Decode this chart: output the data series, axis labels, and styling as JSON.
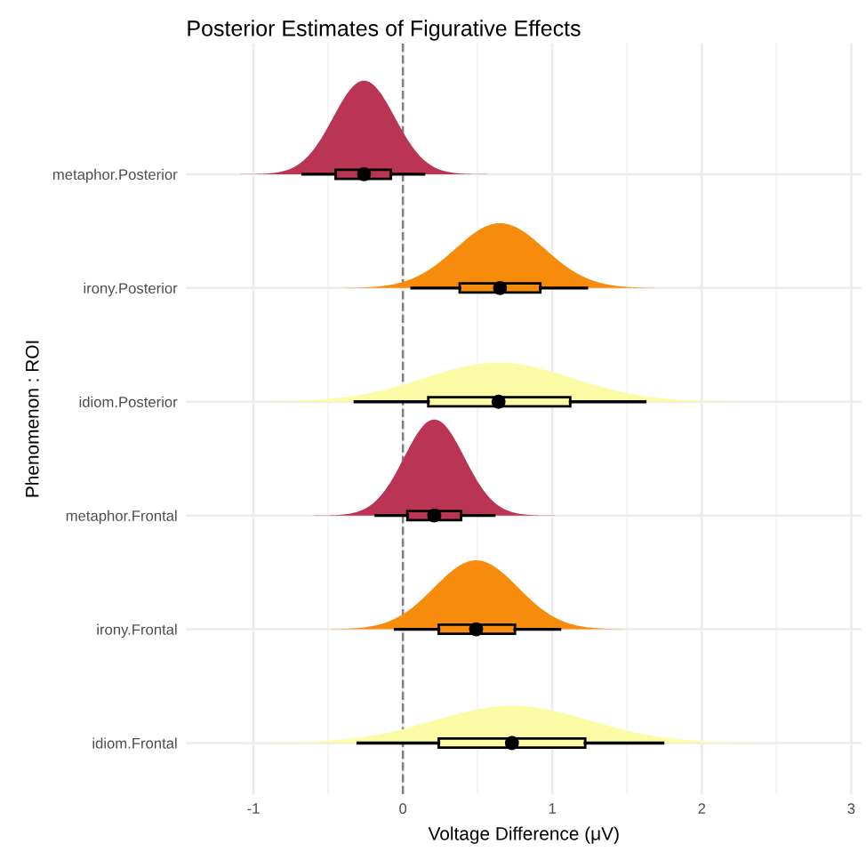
{
  "chart_data": {
    "type": "box",
    "orientation": "horizontal",
    "title": "Posterior Estimates of Figurative Effects",
    "xlabel": "Voltage Difference (μV)",
    "ylabel": "Phenomenon : ROI",
    "categories": [
      "metaphor.Posterior",
      "irony.Posterior",
      "idiom.Posterior",
      "metaphor.Frontal",
      "irony.Frontal",
      "idiom.Frontal"
    ],
    "colors": [
      "#b93553",
      "#f78c0c",
      "#fcfca6",
      "#b93553",
      "#f78c0c",
      "#fcfca6"
    ],
    "boxes": [
      {
        "low": -0.67,
        "q1": -0.45,
        "median": -0.26,
        "q3": -0.08,
        "high": 0.14
      },
      {
        "low": 0.06,
        "q1": 0.38,
        "median": 0.65,
        "q3": 0.92,
        "high": 1.23
      },
      {
        "low": -0.32,
        "q1": 0.17,
        "median": 0.64,
        "q3": 1.12,
        "high": 1.62
      },
      {
        "low": -0.18,
        "q1": 0.03,
        "median": 0.21,
        "q3": 0.39,
        "high": 0.61
      },
      {
        "low": -0.05,
        "q1": 0.24,
        "median": 0.49,
        "q3": 0.75,
        "high": 1.05
      },
      {
        "low": -0.3,
        "q1": 0.24,
        "median": 0.73,
        "q3": 1.22,
        "high": 1.74
      }
    ],
    "xlim": [
      -1.45,
      3.07
    ],
    "xticks": [
      -1,
      0,
      1,
      2,
      3
    ],
    "ref_lines": [
      {
        "axis": "x",
        "value": 0,
        "color": "#808080",
        "line_style": "dashed"
      }
    ],
    "grid": true
  }
}
